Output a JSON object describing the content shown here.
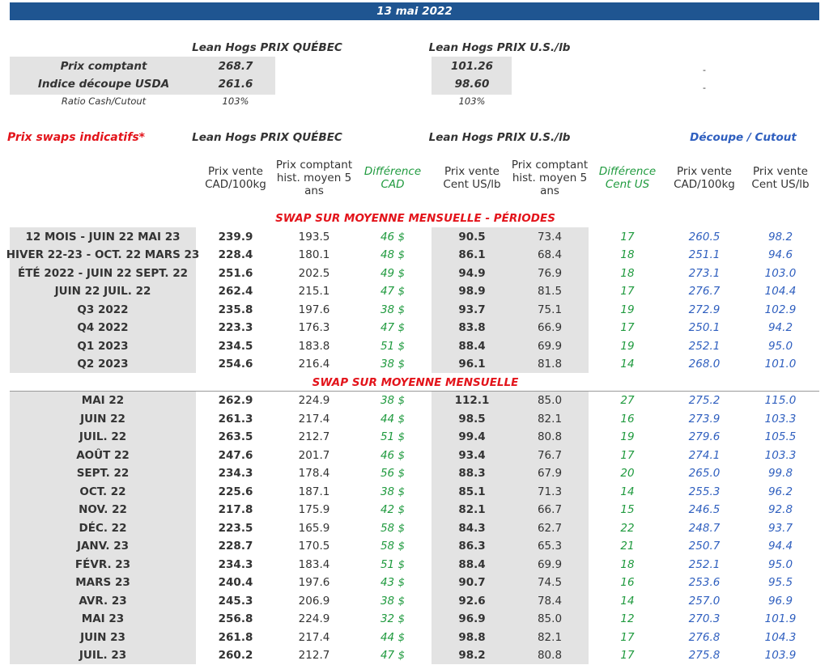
{
  "date": "13 mai 2022",
  "summary": {
    "quebec_title": "Lean Hogs PRIX QUÉBEC",
    "us_title": "Lean Hogs PRIX U.S./lb",
    "rows": [
      {
        "label": "Prix comptant",
        "quebec": "268.7",
        "us": "101.26",
        "other": "-"
      },
      {
        "label": "Indice découpe USDA",
        "quebec": "261.6",
        "us": "98.60",
        "other": "-"
      },
      {
        "label": "Ratio Cash/Cutout",
        "quebec": "103%",
        "us": "103%"
      }
    ]
  },
  "swaps": {
    "title": "Prix swaps indicatifs*",
    "quebec_title": "Lean Hogs PRIX QUÉBEC",
    "us_title": "Lean Hogs PRIX U.S./lb",
    "cutout_title": "Découpe / Cutout",
    "columns": [
      [
        "Prix vente",
        "CAD/100kg"
      ],
      [
        "Prix comptant",
        "hist. moyen 5",
        "ans"
      ],
      [
        "Différence",
        "CAD"
      ],
      [
        "Prix vente",
        "Cent US/lb"
      ],
      [
        "Prix comptant",
        "hist. moyen 5",
        "ans"
      ],
      [
        "Différence",
        "Cent US"
      ],
      [
        "Prix vente",
        "CAD/100kg"
      ],
      [
        "Prix vente",
        "Cent US/lb"
      ]
    ],
    "sections": [
      {
        "title": "SWAP SUR MOYENNE MENSUELLE - PÉRIODES",
        "rows": [
          [
            "12 MOIS - JUIN 22 MAI 23",
            "239.9",
            "193.5",
            "46 $",
            "90.5",
            "73.4",
            "17",
            "260.5",
            "98.2"
          ],
          [
            "HIVER 22-23 - OCT. 22 MARS 23",
            "228.4",
            "180.1",
            "48 $",
            "86.1",
            "68.4",
            "18",
            "251.1",
            "94.6"
          ],
          [
            "ÉTÉ 2022 - JUIN 22 SEPT. 22",
            "251.6",
            "202.5",
            "49 $",
            "94.9",
            "76.9",
            "18",
            "273.1",
            "103.0"
          ],
          [
            "JUIN 22 JUIL. 22",
            "262.4",
            "215.1",
            "47 $",
            "98.9",
            "81.5",
            "17",
            "276.7",
            "104.4"
          ],
          [
            "Q3 2022",
            "235.8",
            "197.6",
            "38 $",
            "93.7",
            "75.1",
            "19",
            "272.9",
            "102.9"
          ],
          [
            "Q4 2022",
            "223.3",
            "176.3",
            "47 $",
            "83.8",
            "66.9",
            "17",
            "250.1",
            "94.2"
          ],
          [
            "Q1 2023",
            "234.5",
            "183.8",
            "51 $",
            "88.4",
            "69.9",
            "19",
            "252.1",
            "95.0"
          ],
          [
            "Q2 2023",
            "254.6",
            "216.4",
            "38 $",
            "96.1",
            "81.8",
            "14",
            "268.0",
            "101.0"
          ]
        ]
      },
      {
        "title": "SWAP SUR MOYENNE MENSUELLE",
        "rows": [
          [
            "MAI 22",
            "262.9",
            "224.9",
            "38 $",
            "112.1",
            "85.0",
            "27",
            "275.2",
            "115.0"
          ],
          [
            "JUIN 22",
            "261.3",
            "217.4",
            "44 $",
            "98.5",
            "82.1",
            "16",
            "273.9",
            "103.3"
          ],
          [
            "JUIL. 22",
            "263.5",
            "212.7",
            "51 $",
            "99.4",
            "80.8",
            "19",
            "279.6",
            "105.5"
          ],
          [
            "AOÛT 22",
            "247.6",
            "201.7",
            "46 $",
            "93.4",
            "76.7",
            "17",
            "274.1",
            "103.3"
          ],
          [
            "SEPT. 22",
            "234.3",
            "178.4",
            "56 $",
            "88.3",
            "67.9",
            "20",
            "265.0",
            "99.8"
          ],
          [
            "OCT. 22",
            "225.6",
            "187.1",
            "38 $",
            "85.1",
            "71.3",
            "14",
            "255.3",
            "96.2"
          ],
          [
            "NOV. 22",
            "217.8",
            "175.9",
            "42 $",
            "82.1",
            "66.7",
            "15",
            "246.5",
            "92.8"
          ],
          [
            "DÉC. 22",
            "223.5",
            "165.9",
            "58 $",
            "84.3",
            "62.7",
            "22",
            "248.7",
            "93.7"
          ],
          [
            "JANV. 23",
            "228.7",
            "170.5",
            "58 $",
            "86.3",
            "65.3",
            "21",
            "250.7",
            "94.4"
          ],
          [
            "FÉVR. 23",
            "234.3",
            "183.4",
            "51 $",
            "88.4",
            "69.9",
            "18",
            "252.1",
            "95.0"
          ],
          [
            "MARS 23",
            "240.4",
            "197.6",
            "43 $",
            "90.7",
            "74.5",
            "16",
            "253.6",
            "95.5"
          ],
          [
            "AVR. 23",
            "245.3",
            "206.9",
            "38 $",
            "92.6",
            "78.4",
            "14",
            "257.0",
            "96.9"
          ],
          [
            "MAI 23",
            "256.8",
            "224.9",
            "32 $",
            "96.9",
            "85.0",
            "12",
            "270.3",
            "101.9"
          ],
          [
            "JUIN 23",
            "261.8",
            "217.4",
            "44 $",
            "98.8",
            "82.1",
            "17",
            "276.8",
            "104.3"
          ],
          [
            "JUIL. 23",
            "260.2",
            "212.7",
            "47 $",
            "98.2",
            "80.8",
            "17",
            "275.8",
            "103.9"
          ]
        ]
      }
    ]
  }
}
